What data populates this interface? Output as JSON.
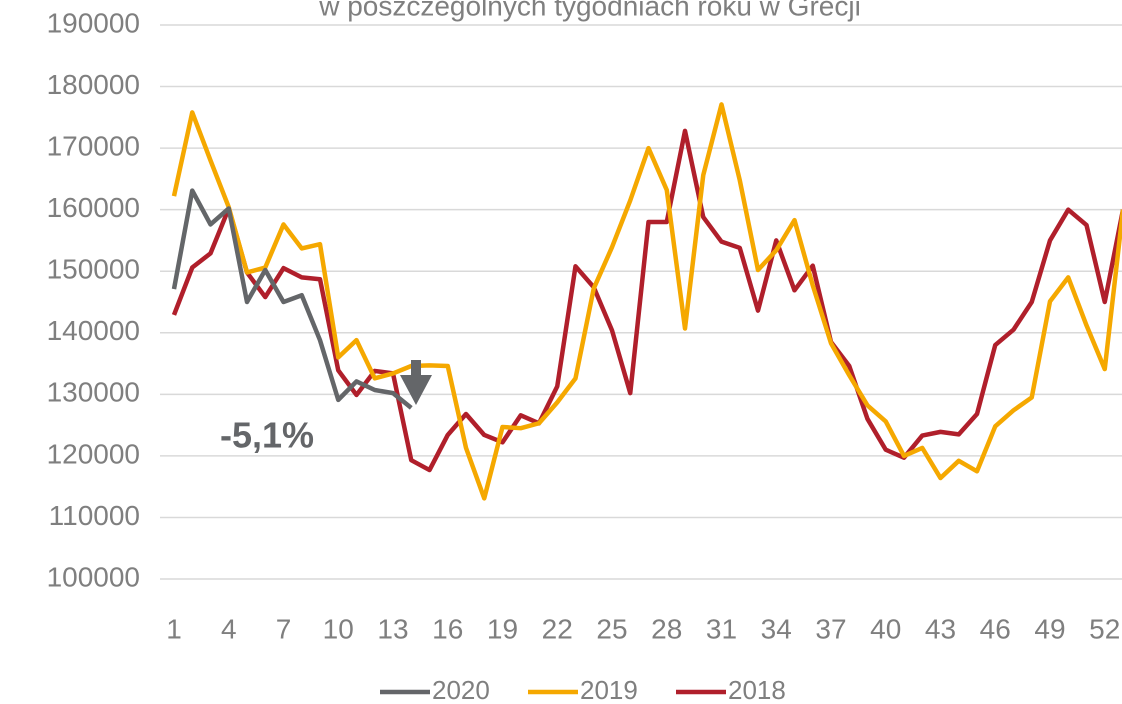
{
  "chart_data": {
    "type": "line",
    "title": "w poszczególnych tygodniach roku w Grecji",
    "annotation": "-5,1%",
    "categories": [
      1,
      null,
      null,
      4,
      null,
      null,
      7,
      null,
      null,
      10,
      null,
      null,
      13,
      null,
      null,
      16,
      null,
      null,
      19,
      null,
      null,
      22,
      null,
      null,
      25,
      null,
      null,
      28,
      null,
      null,
      31,
      null,
      null,
      34,
      null,
      null,
      37,
      null,
      null,
      40,
      null,
      null,
      43,
      null,
      null,
      46,
      null,
      null,
      49,
      null,
      null,
      52,
      null
    ],
    "series": [
      {
        "name": "2020",
        "color": "#646669",
        "values": [
          147100,
          163100,
          157600,
          160200,
          145000,
          150200,
          145000,
          146100,
          138800,
          129100,
          132100,
          130700,
          130200,
          127800,
          null,
          null,
          null,
          null,
          null,
          null,
          null,
          null,
          null,
          null,
          null,
          null,
          null,
          null,
          null,
          null,
          null,
          null,
          null,
          null,
          null,
          null,
          null,
          null,
          null,
          null,
          null,
          null,
          null,
          null,
          null,
          null,
          null,
          null,
          null,
          null,
          null,
          null,
          null
        ]
      },
      {
        "name": "2019",
        "color": "#f5a800",
        "values": [
          162200,
          175800,
          168000,
          160400,
          149800,
          150600,
          157600,
          153700,
          154400,
          136000,
          138800,
          132600,
          133400,
          134600,
          134700,
          134600,
          121300,
          113100,
          124700,
          124500,
          125300,
          128700,
          132600,
          147200,
          153900,
          161500,
          170000,
          163200,
          140700,
          165600,
          177100,
          164800,
          150200,
          153400,
          158300,
          147700,
          138300,
          133100,
          128200,
          125600,
          120000,
          121300,
          116400,
          119200,
          117500,
          124800,
          127400,
          129500,
          145100,
          149000,
          141200,
          134100,
          160000
        ]
      },
      {
        "name": "2018",
        "color": "#b01f2b",
        "values": [
          142900,
          150600,
          152900,
          160200,
          149800,
          145800,
          150500,
          149000,
          148700,
          133900,
          129900,
          133800,
          133400,
          119300,
          117700,
          123400,
          126800,
          123400,
          122200,
          126600,
          125300,
          131300,
          150800,
          147400,
          140400,
          130200,
          158000,
          158000,
          172800,
          158800,
          154800,
          153800,
          143600,
          155000,
          146900,
          150900,
          138500,
          134600,
          126000,
          121000,
          119700,
          123300,
          123900,
          123500,
          126800,
          138000,
          140500,
          145000,
          155000,
          160000,
          157500,
          145000,
          160000
        ]
      }
    ],
    "ylim": [
      100000,
      190000
    ],
    "yticks": [
      100000,
      110000,
      120000,
      130000,
      140000,
      150000,
      160000,
      170000,
      180000,
      190000
    ],
    "grid": true,
    "legend": "bottom"
  }
}
